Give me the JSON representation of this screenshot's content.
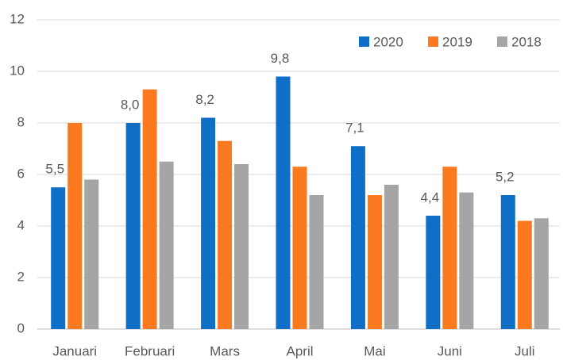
{
  "chart_data": {
    "type": "bar",
    "categories": [
      "Januari",
      "Februari",
      "Mars",
      "April",
      "Mai",
      "Juni",
      "Juli"
    ],
    "series": [
      {
        "name": "2020",
        "color": "#0f6fc6",
        "values": [
          5.5,
          8.0,
          8.2,
          9.8,
          7.1,
          4.4,
          5.2
        ],
        "value_labels": [
          "5,5",
          "8,0",
          "8,2",
          "9,8",
          "7,1",
          "4,4",
          "5,2"
        ]
      },
      {
        "name": "2019",
        "color": "#fb7a1f",
        "values": [
          8.0,
          9.3,
          7.3,
          6.3,
          5.2,
          6.3,
          4.2
        ]
      },
      {
        "name": "2018",
        "color": "#a5a5a5",
        "values": [
          5.8,
          6.5,
          6.4,
          5.2,
          5.6,
          5.3,
          4.3
        ]
      }
    ],
    "ylim": [
      0,
      12
    ],
    "yticks": [
      0,
      2,
      4,
      6,
      8,
      10,
      12
    ],
    "grid": true,
    "legend": "top-right"
  }
}
